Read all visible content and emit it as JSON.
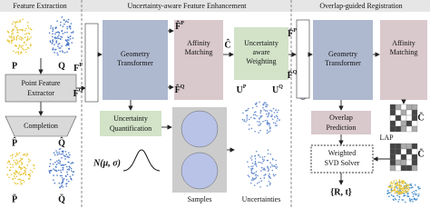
{
  "header": {
    "feature_extraction": "Feature Extraction",
    "enhancement": "Uncertainty-aware Feature Enhancement",
    "registration": "Overlap-guided Registration"
  },
  "extraction": {
    "p": "P",
    "q": "Q",
    "extractor": [
      "Point Feature",
      "Extractor"
    ],
    "completion": "Completion",
    "p_hat": "P̂",
    "q_hat": "Q̂",
    "p_bar": "P̄",
    "q_bar": "Q̄"
  },
  "enhancement": {
    "fp": {
      "base": "F",
      "sup": "P"
    },
    "fq": {
      "base": "F",
      "sup": "Q"
    },
    "geometry": [
      "Geometry",
      "Transformer"
    ],
    "affinity": [
      "Affinity",
      "Matching"
    ],
    "fp_hat": {
      "base": "F̂",
      "sup": "P"
    },
    "fq_hat": {
      "base": "F̂",
      "sup": "Q"
    },
    "c_hat": "Ĉ",
    "weighting": [
      "Uncertainty",
      "aware",
      "Weighting"
    ],
    "up": {
      "base": "U",
      "sup": "P"
    },
    "uq": {
      "base": "U",
      "sup": "Q"
    },
    "quantification": [
      "Uncertainty",
      "Quantification"
    ],
    "normal": "N(μ, σ)",
    "samples": "Samples",
    "uncertainties": "Uncertainties"
  },
  "registration": {
    "fp_bar": {
      "base": "F̄",
      "sup": "P"
    },
    "fq_bar": {
      "base": "F̄",
      "sup": "Q"
    },
    "geometry": [
      "Geometry",
      "Transformer"
    ],
    "affinity": [
      "Affinity",
      "Matching"
    ],
    "overlap": [
      "Overlap",
      "Prediction"
    ],
    "c_bar_1": "C̄",
    "lap": "LAP",
    "c_bar_2": "C̄",
    "svd": [
      "Weighted",
      "SVD Solver"
    ],
    "rt": "{R, t}"
  }
}
